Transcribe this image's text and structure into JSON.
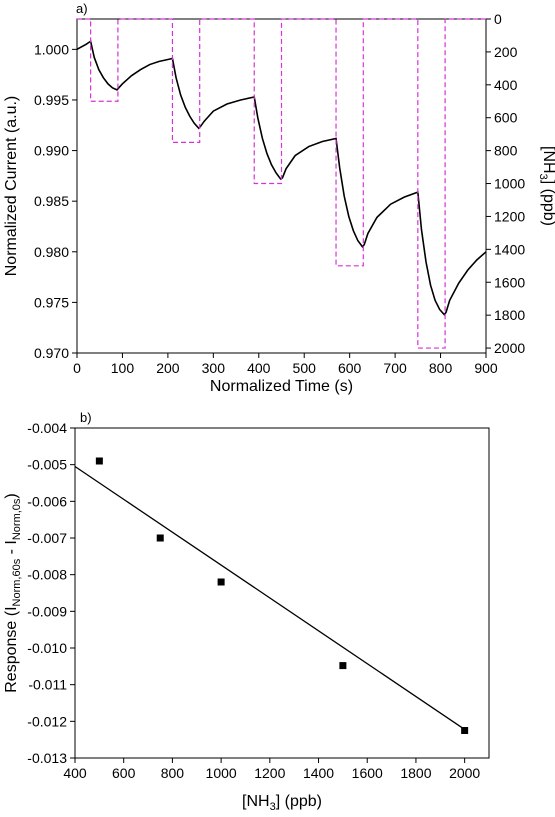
{
  "chart_data": [
    {
      "panel": "a)",
      "type": "line",
      "xlabel": "Normalized Time (s)",
      "ylabel": "Normalized Current (a.u.)",
      "y2label_parts": [
        "[NH",
        "3",
        "] (ppb)"
      ],
      "xlim": [
        0,
        900
      ],
      "ylim": [
        0.97,
        1.003
      ],
      "y2lim": [
        0,
        2030
      ],
      "y2_inverted": true,
      "xticks": [
        0,
        100,
        200,
        300,
        400,
        500,
        600,
        700,
        800,
        900
      ],
      "yticks": [
        "0.970",
        "0.975",
        "0.980",
        "0.985",
        "0.990",
        "0.995",
        "1.000"
      ],
      "y2ticks": [
        0,
        200,
        400,
        600,
        800,
        1000,
        1200,
        1400,
        1600,
        1800,
        2000
      ],
      "series": [
        {
          "axis": "left",
          "color": "#000000",
          "style": "solid",
          "x": [
            0,
            20,
            30,
            38,
            48,
            58,
            68,
            78,
            88,
            92,
            100,
            120,
            140,
            160,
            180,
            200,
            210,
            218,
            228,
            238,
            248,
            258,
            268,
            272,
            280,
            300,
            330,
            360,
            390,
            398,
            408,
            418,
            428,
            438,
            448,
            452,
            460,
            480,
            510,
            540,
            570,
            578,
            588,
            598,
            608,
            618,
            628,
            632,
            640,
            660,
            690,
            720,
            750,
            758,
            768,
            778,
            788,
            798,
            808,
            812,
            820,
            840,
            860,
            880,
            900
          ],
          "y": [
            1.0,
            1.0005,
            1.0008,
            0.9992,
            0.998,
            0.9972,
            0.9966,
            0.9962,
            0.996,
            0.9962,
            0.9966,
            0.9974,
            0.998,
            0.9985,
            0.9988,
            0.999,
            0.9991,
            0.9972,
            0.9955,
            0.9943,
            0.9934,
            0.9927,
            0.9922,
            0.9924,
            0.9929,
            0.9939,
            0.9946,
            0.995,
            0.9953,
            0.9932,
            0.9912,
            0.9897,
            0.9886,
            0.9878,
            0.9872,
            0.9873,
            0.9882,
            0.9895,
            0.9904,
            0.9909,
            0.9912,
            0.9883,
            0.9855,
            0.9835,
            0.9821,
            0.9811,
            0.9805,
            0.9807,
            0.9818,
            0.9834,
            0.9847,
            0.9854,
            0.9859,
            0.9822,
            0.979,
            0.9767,
            0.9752,
            0.9743,
            0.9738,
            0.974,
            0.9752,
            0.9769,
            0.9782,
            0.9792,
            0.98
          ]
        },
        {
          "axis": "right",
          "color": "#d633d6",
          "style": "dashed",
          "x": [
            0,
            30,
            30,
            90,
            90,
            210,
            210,
            270,
            270,
            390,
            390,
            450,
            450,
            570,
            570,
            630,
            630,
            750,
            750,
            810,
            810,
            900
          ],
          "y": [
            0,
            0,
            500,
            500,
            0,
            0,
            750,
            750,
            0,
            0,
            1000,
            1000,
            0,
            0,
            1500,
            1500,
            0,
            0,
            2000,
            2000,
            0,
            0
          ]
        }
      ]
    },
    {
      "panel": "b)",
      "type": "scatter",
      "xlabel_parts": [
        "[NH",
        "3",
        "] (ppb)"
      ],
      "ylabel_parts": [
        "Response (I",
        "Norm,60s",
        " - I",
        "Norm,0s",
        ")"
      ],
      "xlim": [
        400,
        2100
      ],
      "ylim": [
        -0.013,
        -0.004
      ],
      "xticks": [
        400,
        600,
        800,
        1000,
        1200,
        1400,
        1600,
        1800,
        2000
      ],
      "yticks": [
        "-0.013",
        "-0.012",
        "-0.011",
        "-0.010",
        "-0.009",
        "-0.008",
        "-0.007",
        "-0.006",
        "-0.005",
        "-0.004"
      ],
      "points": {
        "x": [
          500,
          750,
          1000,
          1500,
          2000
        ],
        "y": [
          -0.0049,
          -0.007,
          -0.0082,
          -0.01048,
          -0.01225
        ]
      },
      "fit": {
        "x": [
          400,
          2000
        ],
        "y": [
          -0.00505,
          -0.01222
        ]
      }
    }
  ]
}
